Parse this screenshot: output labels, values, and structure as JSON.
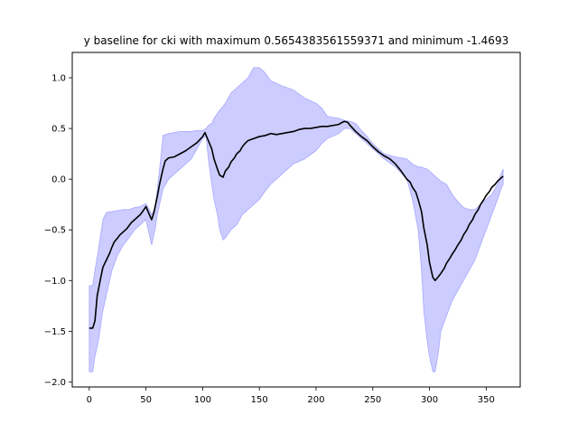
{
  "chart_data": {
    "type": "line",
    "title": "y baseline for cki with maximum 0.5654383561559371 and minimum -1.4693",
    "xlabel": "",
    "ylabel": "",
    "xlim": [
      -15,
      380
    ],
    "ylim": [
      -2.05,
      1.25
    ],
    "xticks": [
      0,
      50,
      100,
      150,
      200,
      250,
      300,
      350
    ],
    "xtick_labels": [
      "0",
      "50",
      "100",
      "150",
      "200",
      "250",
      "300",
      "350"
    ],
    "yticks": [
      -2.0,
      -1.5,
      -1.0,
      -0.5,
      0.0,
      0.5,
      1.0
    ],
    "ytick_labels": [
      "−2.0",
      "−1.5",
      "−1.0",
      "−0.5",
      "0.0",
      "0.5",
      "1.0"
    ],
    "grid": false,
    "colors": {
      "line": "#000000",
      "band_fill": "#0000ff",
      "band_edge": "#6f6fff"
    },
    "series": [
      {
        "role": "line",
        "x": [
          0,
          3,
          5,
          7,
          10,
          12,
          15,
          18,
          20,
          22,
          25,
          27,
          30,
          33,
          35,
          37,
          40,
          43,
          45,
          47,
          50,
          53,
          55,
          57,
          60,
          62,
          65,
          67,
          70,
          75,
          80,
          85,
          90,
          95,
          100,
          102,
          105,
          108,
          110,
          113,
          115,
          118,
          120,
          123,
          125,
          128,
          130,
          133,
          135,
          138,
          140,
          145,
          150,
          155,
          160,
          165,
          170,
          175,
          180,
          185,
          190,
          195,
          200,
          205,
          210,
          215,
          220,
          223,
          225,
          228,
          230,
          235,
          240,
          245,
          250,
          255,
          260,
          265,
          270,
          275,
          280,
          283,
          285,
          288,
          290,
          293,
          295,
          298,
          300,
          303,
          305,
          308,
          310,
          313,
          315,
          318,
          320,
          323,
          325,
          328,
          330,
          333,
          335,
          338,
          340,
          343,
          345,
          348,
          350,
          353,
          355,
          358,
          360,
          363,
          365
        ],
        "y": [
          -1.47,
          -1.47,
          -1.4,
          -1.15,
          -0.98,
          -0.87,
          -0.8,
          -0.73,
          -0.67,
          -0.62,
          -0.58,
          -0.55,
          -0.52,
          -0.49,
          -0.46,
          -0.43,
          -0.4,
          -0.37,
          -0.35,
          -0.32,
          -0.27,
          -0.35,
          -0.4,
          -0.33,
          -0.17,
          -0.05,
          0.1,
          0.18,
          0.21,
          0.22,
          0.25,
          0.28,
          0.32,
          0.36,
          0.42,
          0.46,
          0.38,
          0.3,
          0.2,
          0.1,
          0.04,
          0.02,
          0.08,
          0.12,
          0.17,
          0.21,
          0.25,
          0.28,
          0.32,
          0.36,
          0.38,
          0.4,
          0.42,
          0.43,
          0.45,
          0.44,
          0.45,
          0.46,
          0.47,
          0.49,
          0.5,
          0.5,
          0.51,
          0.52,
          0.52,
          0.53,
          0.54,
          0.56,
          0.57,
          0.56,
          0.53,
          0.47,
          0.42,
          0.38,
          0.32,
          0.27,
          0.23,
          0.2,
          0.15,
          0.08,
          0.0,
          -0.03,
          -0.08,
          -0.13,
          -0.2,
          -0.32,
          -0.48,
          -0.65,
          -0.82,
          -0.97,
          -1.0,
          -0.96,
          -0.93,
          -0.88,
          -0.83,
          -0.78,
          -0.74,
          -0.69,
          -0.65,
          -0.6,
          -0.55,
          -0.5,
          -0.45,
          -0.4,
          -0.35,
          -0.3,
          -0.25,
          -0.2,
          -0.16,
          -0.12,
          -0.08,
          -0.05,
          -0.02,
          0.01,
          0.03
        ]
      },
      {
        "role": "band",
        "x": [
          0,
          3,
          5,
          8,
          10,
          12,
          15,
          18,
          20,
          25,
          30,
          35,
          40,
          45,
          50,
          53,
          55,
          58,
          60,
          63,
          65,
          70,
          75,
          80,
          90,
          95,
          100,
          103,
          105,
          108,
          110,
          113,
          115,
          118,
          120,
          125,
          130,
          135,
          140,
          145,
          150,
          155,
          160,
          170,
          180,
          190,
          200,
          205,
          210,
          220,
          225,
          230,
          235,
          240,
          245,
          250,
          255,
          260,
          270,
          280,
          285,
          290,
          293,
          295,
          298,
          300,
          303,
          305,
          308,
          310,
          315,
          320,
          325,
          330,
          335,
          340,
          345,
          350,
          355,
          360,
          363,
          365
        ],
        "upper": [
          -1.05,
          -1.05,
          -0.9,
          -0.7,
          -0.55,
          -0.4,
          -0.33,
          -0.32,
          -0.32,
          -0.31,
          -0.3,
          -0.3,
          -0.28,
          -0.27,
          -0.24,
          -0.3,
          -0.35,
          -0.28,
          -0.1,
          0.2,
          0.43,
          0.45,
          0.46,
          0.47,
          0.47,
          0.48,
          0.48,
          0.5,
          0.53,
          0.55,
          0.6,
          0.65,
          0.68,
          0.72,
          0.75,
          0.85,
          0.9,
          0.95,
          1.0,
          1.1,
          1.1,
          1.05,
          0.97,
          0.92,
          0.88,
          0.8,
          0.75,
          0.7,
          0.62,
          0.6,
          0.58,
          0.57,
          0.55,
          0.48,
          0.42,
          0.35,
          0.3,
          0.25,
          0.22,
          0.2,
          0.15,
          0.12,
          0.12,
          0.11,
          0.1,
          0.08,
          0.05,
          0.03,
          0.0,
          -0.02,
          -0.05,
          -0.15,
          -0.22,
          -0.28,
          -0.3,
          -0.3,
          -0.25,
          -0.2,
          -0.15,
          -0.05,
          0.05,
          0.1
        ],
        "lower": [
          -1.9,
          -1.9,
          -1.75,
          -1.6,
          -1.45,
          -1.3,
          -1.15,
          -1.0,
          -0.9,
          -0.75,
          -0.65,
          -0.58,
          -0.5,
          -0.45,
          -0.4,
          -0.55,
          -0.65,
          -0.5,
          -0.35,
          -0.2,
          -0.1,
          0.0,
          0.05,
          0.1,
          0.2,
          0.3,
          0.4,
          0.42,
          0.2,
          -0.05,
          -0.2,
          -0.35,
          -0.5,
          -0.6,
          -0.58,
          -0.5,
          -0.45,
          -0.35,
          -0.3,
          -0.25,
          -0.2,
          -0.12,
          -0.05,
          0.05,
          0.15,
          0.2,
          0.28,
          0.35,
          0.4,
          0.45,
          0.5,
          0.5,
          0.45,
          0.4,
          0.35,
          0.3,
          0.25,
          0.2,
          0.12,
          0.0,
          -0.2,
          -0.5,
          -0.9,
          -1.3,
          -1.6,
          -1.75,
          -1.9,
          -1.9,
          -1.7,
          -1.5,
          -1.35,
          -1.2,
          -1.1,
          -1.0,
          -0.9,
          -0.8,
          -0.65,
          -0.5,
          -0.35,
          -0.2,
          -0.1,
          -0.05
        ]
      }
    ]
  }
}
